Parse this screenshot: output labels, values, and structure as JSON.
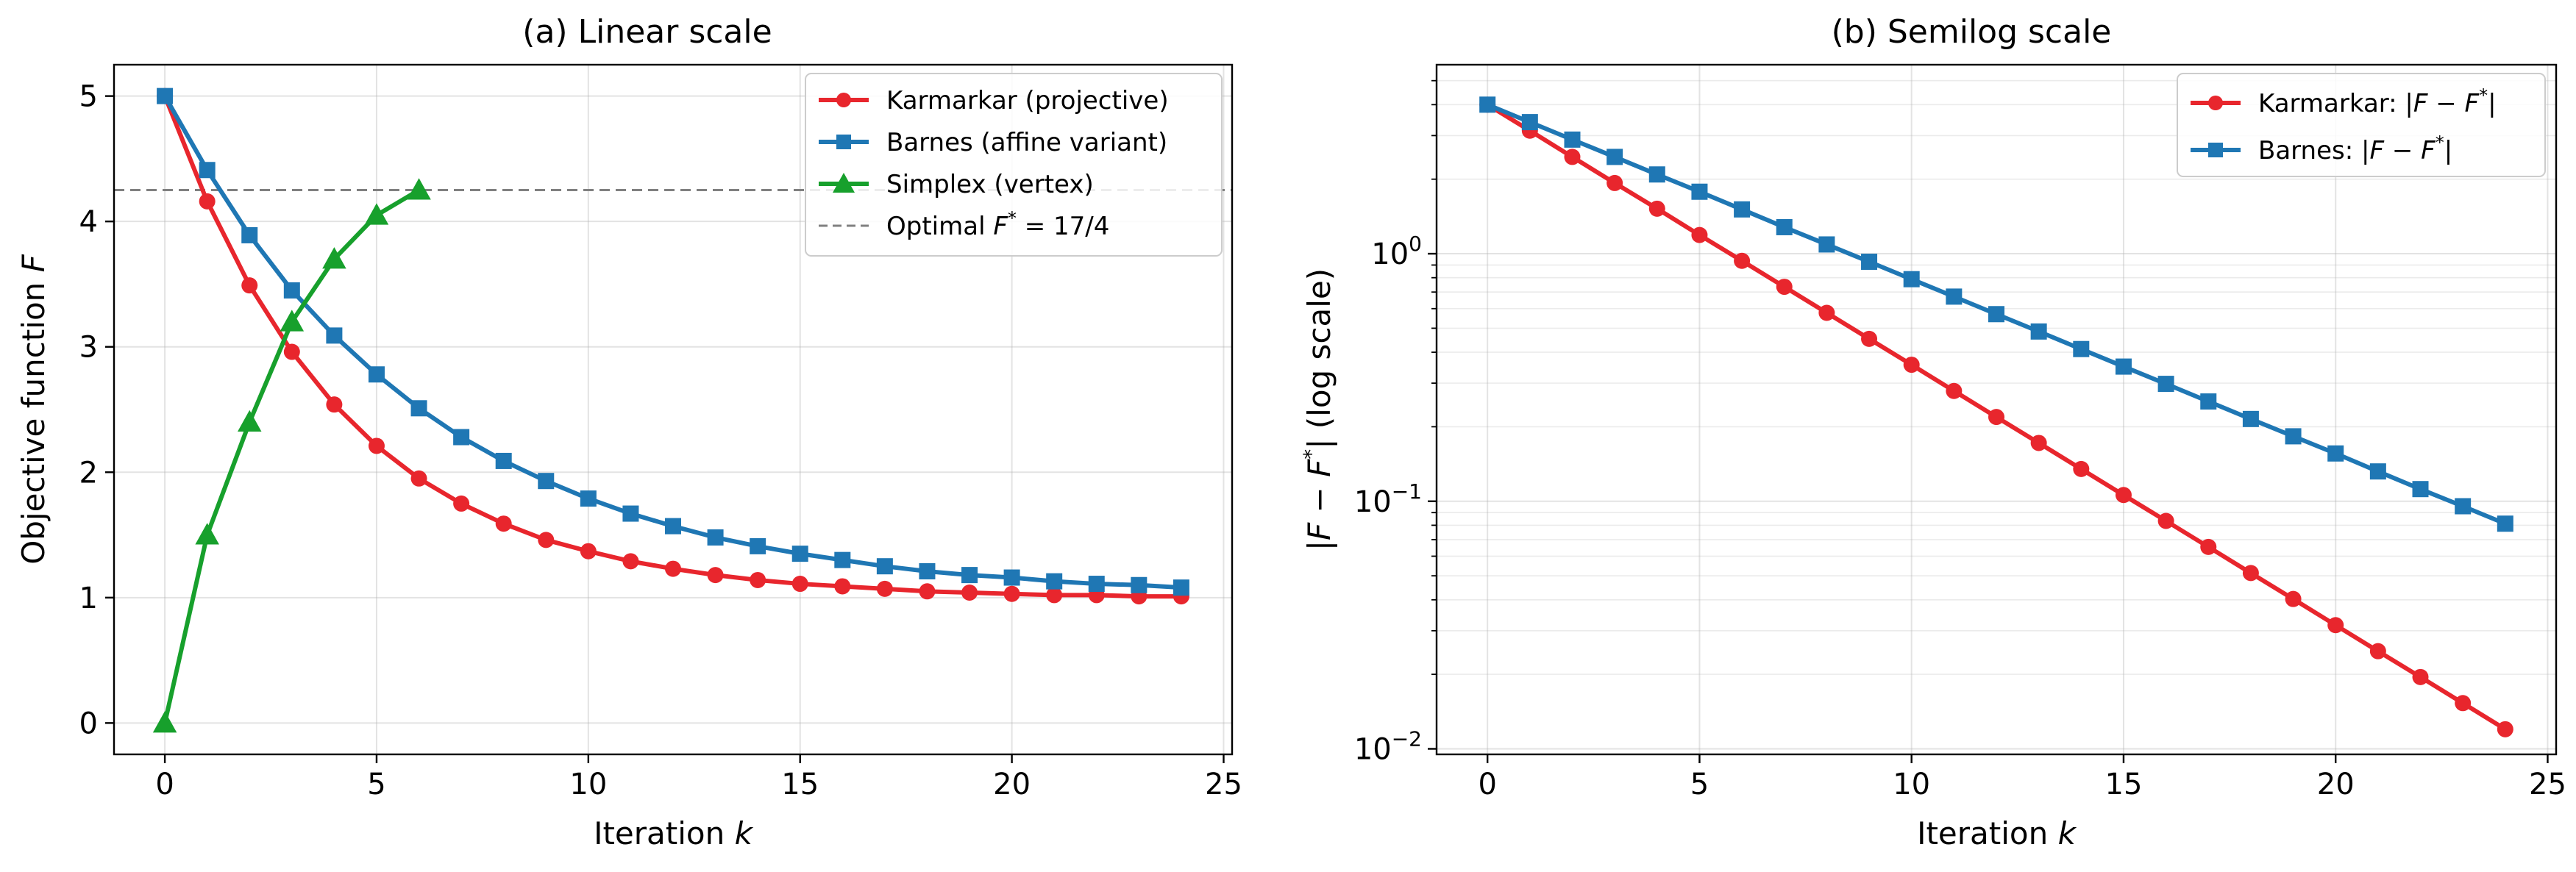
{
  "chart_data": [
    {
      "type": "line",
      "title": "(a) Linear scale",
      "xlabel": "Iteration k",
      "ylabel": "Objective function F",
      "xlim": [
        -1.2,
        25.2
      ],
      "ylim": [
        -0.25,
        5.25
      ],
      "xticks": [
        0,
        5,
        10,
        15,
        20,
        25
      ],
      "yticks": [
        0,
        1,
        2,
        3,
        4,
        5
      ],
      "grid": true,
      "legend_position": "top-right",
      "series": [
        {
          "name": "Karmarkar (projective)",
          "color": "#e8262d",
          "marker": "circle",
          "x": [
            0,
            1,
            2,
            3,
            4,
            5,
            6,
            7,
            8,
            9,
            10,
            11,
            12,
            13,
            14,
            15,
            16,
            17,
            18,
            19,
            20,
            21,
            22,
            23,
            24
          ],
          "y": [
            5.0,
            4.16,
            3.49,
            2.96,
            2.54,
            2.21,
            1.95,
            1.75,
            1.59,
            1.46,
            1.37,
            1.29,
            1.23,
            1.18,
            1.14,
            1.11,
            1.09,
            1.07,
            1.05,
            1.04,
            1.03,
            1.02,
            1.02,
            1.01,
            1.01
          ]
        },
        {
          "name": "Barnes (affine variant)",
          "color": "#1f77b4",
          "marker": "square",
          "x": [
            0,
            1,
            2,
            3,
            4,
            5,
            6,
            7,
            8,
            9,
            10,
            11,
            12,
            13,
            14,
            15,
            16,
            17,
            18,
            19,
            20,
            21,
            22,
            23,
            24
          ],
          "y": [
            5.0,
            4.41,
            3.89,
            3.45,
            3.09,
            2.78,
            2.51,
            2.28,
            2.09,
            1.93,
            1.79,
            1.67,
            1.57,
            1.48,
            1.41,
            1.35,
            1.3,
            1.25,
            1.21,
            1.18,
            1.16,
            1.13,
            1.11,
            1.1,
            1.08
          ]
        },
        {
          "name": "Simplex (vertex)",
          "color": "#17a02c",
          "marker": "triangle",
          "x": [
            0,
            1,
            2,
            3,
            4,
            5,
            6
          ],
          "y": [
            0.0,
            1.5,
            2.4,
            3.2,
            3.7,
            4.05,
            4.25
          ]
        }
      ],
      "reference_line": {
        "label": "Optimal F* = 17/4",
        "y": 4.25,
        "color": "#808080",
        "style": "dashed"
      }
    },
    {
      "type": "line",
      "title": "(b) Semilog scale",
      "xlabel": "Iteration k",
      "ylabel": "|F − F*| (log scale)",
      "xscale": "linear",
      "yscale": "log",
      "xlim": [
        -1.2,
        25.2
      ],
      "ylim": [
        0.0095,
        5.8
      ],
      "xticks": [
        0,
        5,
        10,
        15,
        20,
        25
      ],
      "yticks": [
        0.01,
        0.1,
        1
      ],
      "ytick_labels": [
        "10",
        "10",
        "10"
      ],
      "ytick_exponents": [
        "−2",
        "−1",
        "0"
      ],
      "grid": true,
      "legend_position": "top-right",
      "series": [
        {
          "name": "Karmarkar: |F − F*|",
          "color": "#e8262d",
          "marker": "circle",
          "x": [
            0,
            1,
            2,
            3,
            4,
            5,
            6,
            7,
            8,
            9,
            10,
            11,
            12,
            13,
            14,
            15,
            16,
            17,
            18,
            19,
            20,
            21,
            22,
            23,
            24
          ],
          "y": [
            4.0,
            3.14,
            2.46,
            1.93,
            1.52,
            1.19,
            0.936,
            0.735,
            0.577,
            0.453,
            0.356,
            0.279,
            0.219,
            0.172,
            0.135,
            0.106,
            0.0833,
            0.0654,
            0.0513,
            0.0403,
            0.0316,
            0.0248,
            0.0195,
            0.0153,
            0.012
          ]
        },
        {
          "name": "Barnes: |F − F*|",
          "color": "#1f77b4",
          "marker": "square",
          "x": [
            0,
            1,
            2,
            3,
            4,
            5,
            6,
            7,
            8,
            9,
            10,
            11,
            12,
            13,
            14,
            15,
            16,
            17,
            18,
            19,
            20,
            21,
            22,
            23,
            24
          ],
          "y": [
            4.0,
            3.4,
            2.89,
            2.46,
            2.09,
            1.78,
            1.51,
            1.28,
            1.09,
            0.928,
            0.789,
            0.671,
            0.57,
            0.485,
            0.412,
            0.35,
            0.298,
            0.253,
            0.215,
            0.183,
            0.156,
            0.132,
            0.112,
            0.0955,
            0.0812
          ]
        }
      ]
    }
  ]
}
